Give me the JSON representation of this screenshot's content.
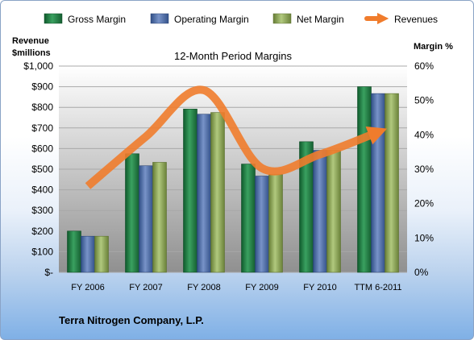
{
  "chart_data": {
    "type": "bar",
    "title": "12-Month Period Margins",
    "left_axis_label": [
      "Revenue",
      "$millions"
    ],
    "right_axis_label": "Margin %",
    "categories": [
      "FY 2006",
      "FY 2007",
      "FY 2008",
      "FY 2009",
      "FY 2010",
      "TTM 6-2011"
    ],
    "left_ticks": [
      "$-",
      "$100",
      "$200",
      "$300",
      "$400",
      "$500",
      "$600",
      "$700",
      "$800",
      "$900",
      "$1,000"
    ],
    "right_ticks": [
      "0%",
      "10%",
      "20%",
      "30%",
      "40%",
      "50%",
      "60%"
    ],
    "ylim_left": [
      0,
      1000
    ],
    "ylim_right": [
      0,
      60
    ],
    "legend_position": "top",
    "series": [
      {
        "name": "Gross Margin",
        "kind": "bar",
        "axis": "right",
        "color": "#217a45",
        "values": [
          12,
          34.5,
          47.5,
          31.5,
          38,
          54
        ]
      },
      {
        "name": "Operating Margin",
        "kind": "bar",
        "axis": "right",
        "color": "#4f6fa8",
        "values": [
          10.5,
          31,
          46,
          28,
          35.5,
          52
        ]
      },
      {
        "name": "Net Margin",
        "kind": "bar",
        "axis": "right",
        "color": "#8ea95a",
        "values": [
          10.5,
          32,
          46.5,
          28.5,
          35.5,
          52
        ]
      },
      {
        "name": "Revenues",
        "kind": "line",
        "axis": "left",
        "color": "#f07c2c",
        "values": [
          418,
          658,
          883,
          505,
          572,
          680
        ]
      }
    ],
    "footer": "Terra Nitrogen Company, L.P."
  }
}
